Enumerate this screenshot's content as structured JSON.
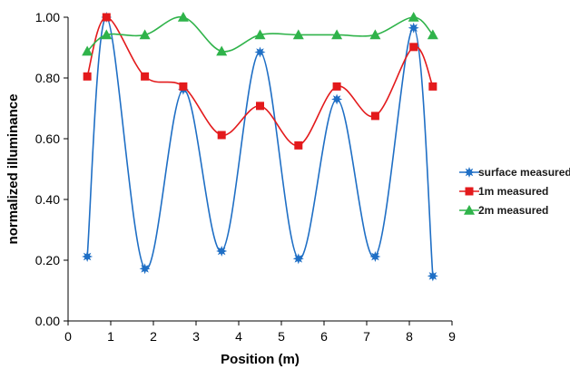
{
  "chart_data": {
    "type": "scatter",
    "title": "",
    "xlabel": "Position (m)",
    "ylabel": "normalized illuminance",
    "xlim": [
      0,
      9
    ],
    "ylim": [
      0,
      1
    ],
    "xticks": [
      "0",
      "1",
      "2",
      "3",
      "4",
      "5",
      "6",
      "7",
      "8",
      "9"
    ],
    "yticks": [
      "0.00",
      "0.20",
      "0.40",
      "0.60",
      "0.80",
      "1.00"
    ],
    "grid": false,
    "legend_position": "right",
    "series": [
      {
        "name": "surface measured",
        "color": "#1f6fc5",
        "marker": "star",
        "x": [
          0.45,
          0.9,
          1.8,
          2.7,
          3.6,
          4.5,
          5.4,
          6.3,
          7.2,
          8.1,
          8.55
        ],
        "y": [
          0.212,
          1.0,
          0.172,
          0.762,
          0.23,
          0.885,
          0.205,
          0.73,
          0.212,
          0.965,
          0.148
        ]
      },
      {
        "name": "1m measured",
        "color": "#e31a1c",
        "marker": "square",
        "x": [
          0.45,
          0.9,
          1.8,
          2.7,
          3.6,
          4.5,
          5.4,
          6.3,
          7.2,
          8.1,
          8.55
        ],
        "y": [
          0.805,
          1.0,
          0.805,
          0.772,
          0.612,
          0.708,
          0.578,
          0.772,
          0.675,
          0.902,
          0.772
        ]
      },
      {
        "name": "2m measured",
        "color": "#2fb34a",
        "marker": "triangle",
        "x": [
          0.45,
          0.9,
          1.8,
          2.7,
          3.6,
          4.5,
          5.4,
          6.3,
          7.2,
          8.1,
          8.55
        ],
        "y": [
          0.888,
          0.942,
          0.942,
          1.0,
          0.888,
          0.942,
          0.942,
          0.942,
          0.942,
          1.0,
          0.942
        ]
      }
    ]
  }
}
